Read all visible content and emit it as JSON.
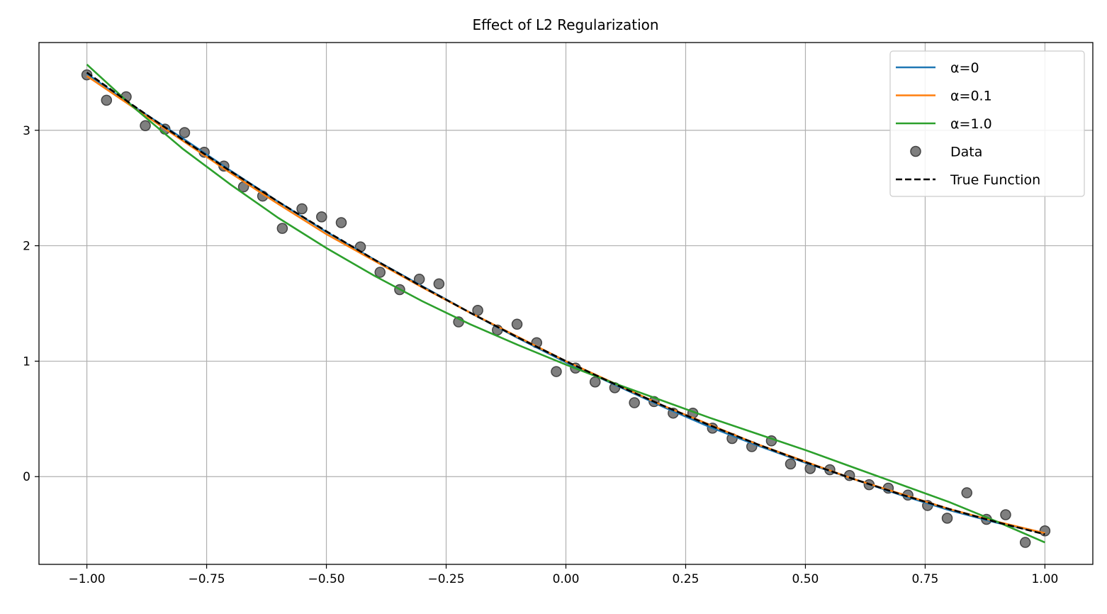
{
  "chart_data": {
    "type": "line",
    "title": "Effect of L2 Regularization",
    "xlabel": "",
    "ylabel": "",
    "xlim": [
      -1.1,
      1.1
    ],
    "ylim": [
      -0.76,
      3.76
    ],
    "grid": true,
    "legend_placement": "top-right",
    "xticks": [
      -1.0,
      -0.75,
      -0.5,
      -0.25,
      0.0,
      0.25,
      0.5,
      0.75,
      1.0
    ],
    "xtick_labels": [
      "−1.00",
      "−0.75",
      "−0.50",
      "−0.25",
      "0.00",
      "0.25",
      "0.50",
      "0.75",
      "1.00"
    ],
    "yticks": [
      0,
      1,
      2,
      3
    ],
    "ytick_labels": [
      "0",
      "1",
      "2",
      "3"
    ],
    "line_x": [
      -1.0,
      -0.9,
      -0.8,
      -0.7,
      -0.6,
      -0.5,
      -0.4,
      -0.3,
      -0.2,
      -0.1,
      0.0,
      0.1,
      0.2,
      0.3,
      0.4,
      0.5,
      0.6,
      0.7,
      0.8,
      0.9,
      1.0
    ],
    "series": [
      {
        "name": "α=0",
        "kind": "line",
        "color": "#1f77b4",
        "dash": false,
        "y": [
          3.49,
          3.2,
          2.93,
          2.65,
          2.38,
          2.12,
          1.88,
          1.65,
          1.42,
          1.2,
          0.99,
          0.8,
          0.61,
          0.43,
          0.27,
          0.12,
          -0.02,
          -0.16,
          -0.29,
          -0.4,
          -0.49
        ]
      },
      {
        "name": "α=0.1",
        "kind": "line",
        "color": "#ff7f0e",
        "dash": false,
        "y": [
          3.47,
          3.19,
          2.91,
          2.63,
          2.36,
          2.1,
          1.87,
          1.64,
          1.42,
          1.21,
          1.0,
          0.81,
          0.62,
          0.45,
          0.28,
          0.13,
          -0.02,
          -0.15,
          -0.28,
          -0.39,
          -0.49
        ]
      },
      {
        "name": "α=1.0",
        "kind": "line",
        "color": "#2ca02c",
        "dash": false,
        "y": [
          3.57,
          3.19,
          2.84,
          2.53,
          2.24,
          1.98,
          1.74,
          1.52,
          1.32,
          1.14,
          0.97,
          0.81,
          0.66,
          0.51,
          0.37,
          0.23,
          0.08,
          -0.07,
          -0.22,
          -0.39,
          -0.57
        ]
      },
      {
        "name": "Data",
        "kind": "scatter",
        "color": "#7f7f7f",
        "x": [
          -1.0,
          -0.959,
          -0.918,
          -0.878,
          -0.837,
          -0.796,
          -0.755,
          -0.714,
          -0.673,
          -0.633,
          -0.592,
          -0.551,
          -0.51,
          -0.469,
          -0.429,
          -0.388,
          -0.347,
          -0.306,
          -0.265,
          -0.224,
          -0.184,
          -0.143,
          -0.102,
          -0.061,
          -0.02,
          0.02,
          0.061,
          0.102,
          0.143,
          0.184,
          0.224,
          0.265,
          0.306,
          0.347,
          0.388,
          0.429,
          0.469,
          0.51,
          0.551,
          0.592,
          0.633,
          0.673,
          0.714,
          0.755,
          0.796,
          0.837,
          0.878,
          0.918,
          0.959,
          1.0
        ],
        "y": [
          3.48,
          3.26,
          3.29,
          3.04,
          3.01,
          2.98,
          2.81,
          2.69,
          2.51,
          2.43,
          2.15,
          2.32,
          2.25,
          2.2,
          1.99,
          1.77,
          1.62,
          1.71,
          1.67,
          1.34,
          1.44,
          1.27,
          1.32,
          1.16,
          0.91,
          0.94,
          0.82,
          0.77,
          0.64,
          0.65,
          0.55,
          0.55,
          0.42,
          0.33,
          0.26,
          0.31,
          0.11,
          0.07,
          0.06,
          0.01,
          -0.07,
          -0.1,
          -0.16,
          -0.25,
          -0.36,
          -0.14,
          -0.37,
          -0.33,
          -0.57,
          -0.47
        ]
      },
      {
        "name": "True Function",
        "kind": "line",
        "color": "#000000",
        "dash": true,
        "y": [
          3.5,
          3.205,
          2.92,
          2.645,
          2.38,
          2.125,
          1.88,
          1.645,
          1.42,
          1.205,
          1.0,
          0.805,
          0.62,
          0.445,
          0.28,
          0.125,
          -0.02,
          -0.155,
          -0.28,
          -0.395,
          -0.5
        ]
      }
    ]
  }
}
